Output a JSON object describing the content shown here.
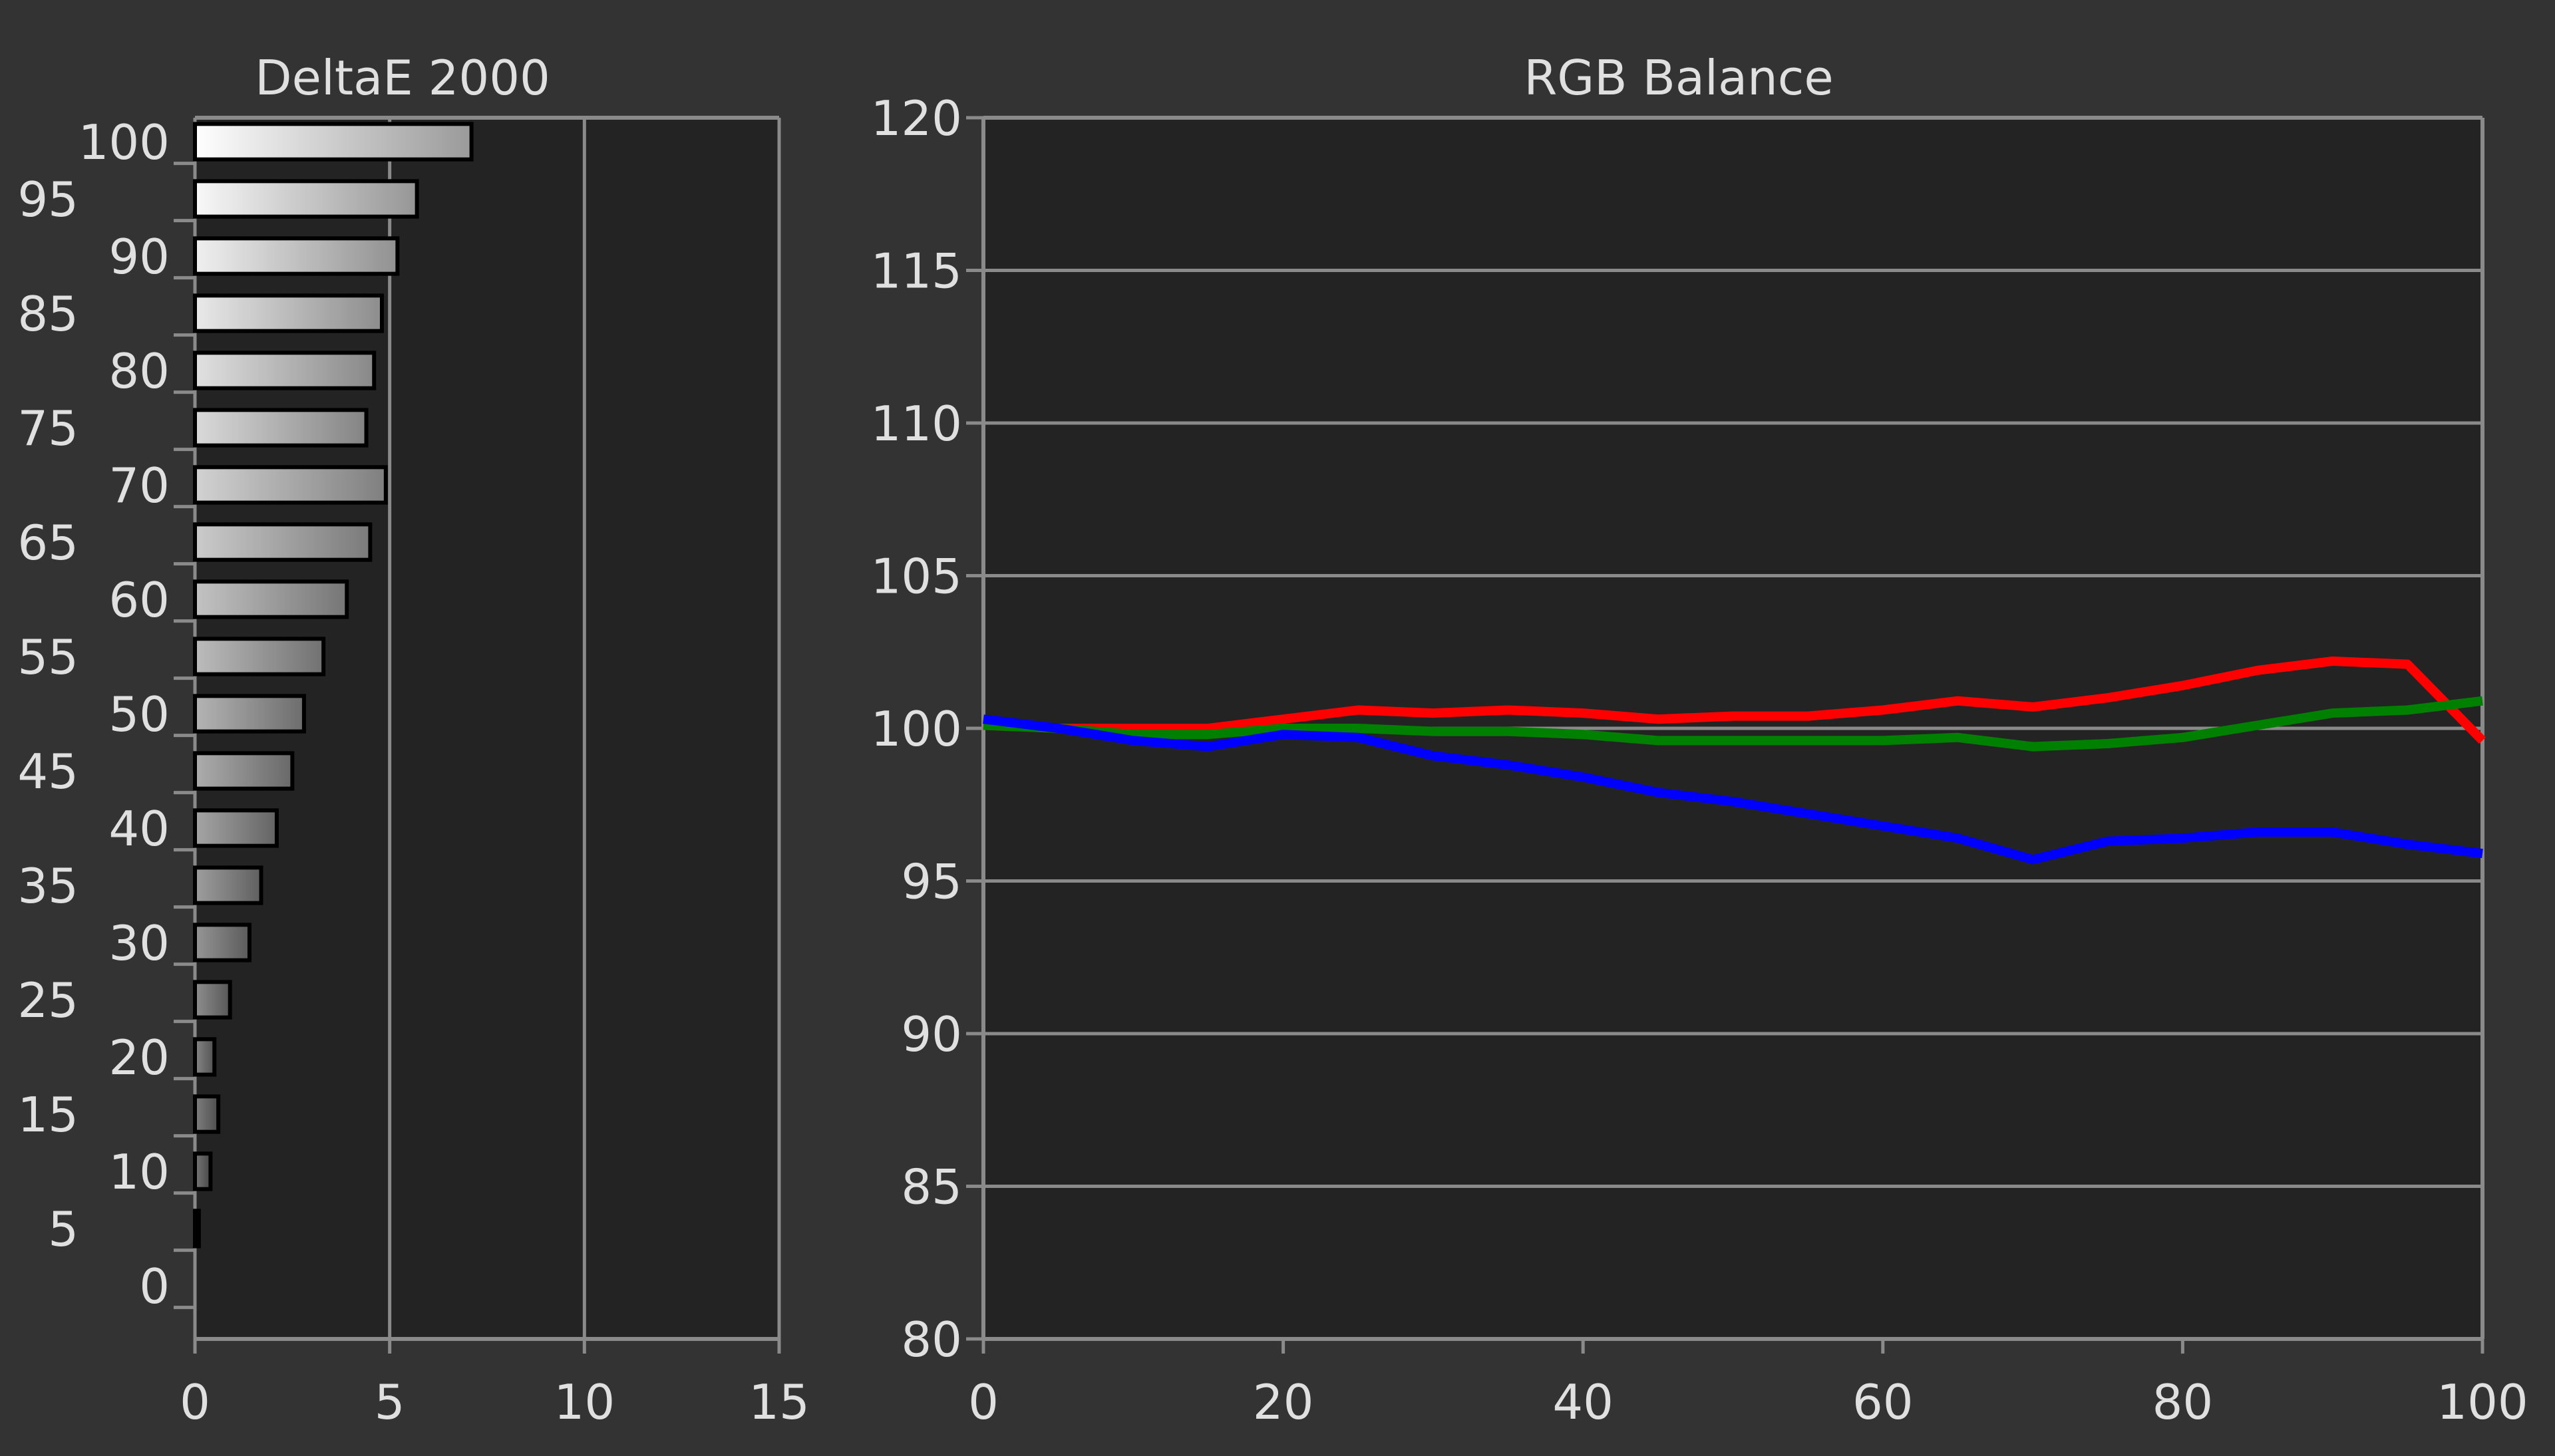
{
  "colors": {
    "background": "#333333",
    "plot_background": "#232323",
    "grid": "#8a8a8a",
    "text": "#e0e0e0",
    "red": "#ff0000",
    "green": "#008000",
    "blue": "#0000ff"
  },
  "chart_data": [
    {
      "type": "bar",
      "orientation": "horizontal",
      "title": "DeltaE 2000",
      "xlabel": "",
      "ylabel": "",
      "xlim": [
        0,
        15
      ],
      "x_ticks": [
        "0",
        "5",
        "10",
        "15"
      ],
      "categories": [
        "100",
        "95",
        "90",
        "85",
        "80",
        "75",
        "70",
        "65",
        "60",
        "55",
        "50",
        "45",
        "40",
        "35",
        "30",
        "25",
        "20",
        "15",
        "10",
        "5",
        "0"
      ],
      "values": [
        7.1,
        5.7,
        5.2,
        4.8,
        4.6,
        4.4,
        4.9,
        4.5,
        3.9,
        3.3,
        2.8,
        2.5,
        2.1,
        1.7,
        1.4,
        0.9,
        0.5,
        0.6,
        0.4,
        0.1,
        0
      ],
      "grid": true,
      "bar_fill": "gradient white-to-gray, darker for lower categories"
    },
    {
      "type": "line",
      "title": "RGB Balance",
      "xlabel": "",
      "ylabel": "",
      "xlim": [
        0,
        100
      ],
      "ylim": [
        80,
        120
      ],
      "x_ticks": [
        "0",
        "20",
        "40",
        "60",
        "80",
        "100"
      ],
      "y_ticks": [
        "120",
        "115",
        "110",
        "105",
        "100",
        "95",
        "90",
        "85",
        "80"
      ],
      "grid": true,
      "x": [
        0,
        5,
        10,
        15,
        20,
        25,
        30,
        35,
        40,
        45,
        50,
        55,
        60,
        65,
        70,
        75,
        80,
        85,
        90,
        95,
        100
      ],
      "series": [
        {
          "color": "#ff0000",
          "values": [
            100.1,
            100.0,
            100.0,
            100.0,
            100.3,
            100.6,
            100.5,
            100.6,
            100.5,
            100.3,
            100.4,
            100.4,
            100.6,
            100.9,
            100.7,
            101.0,
            101.4,
            101.9,
            102.2,
            102.1,
            99.6
          ]
        },
        {
          "color": "#008000",
          "values": [
            100.1,
            100.0,
            99.8,
            99.8,
            100.0,
            100.0,
            99.9,
            99.9,
            99.8,
            99.6,
            99.6,
            99.6,
            99.6,
            99.7,
            99.4,
            99.5,
            99.7,
            100.1,
            100.5,
            100.6,
            100.9
          ]
        },
        {
          "color": "#0000ff",
          "values": [
            100.3,
            100.0,
            99.6,
            99.4,
            99.8,
            99.7,
            99.1,
            98.8,
            98.4,
            97.9,
            97.6,
            97.2,
            96.8,
            96.4,
            95.7,
            96.3,
            96.4,
            96.6,
            96.6,
            96.2,
            95.9
          ]
        }
      ]
    }
  ]
}
